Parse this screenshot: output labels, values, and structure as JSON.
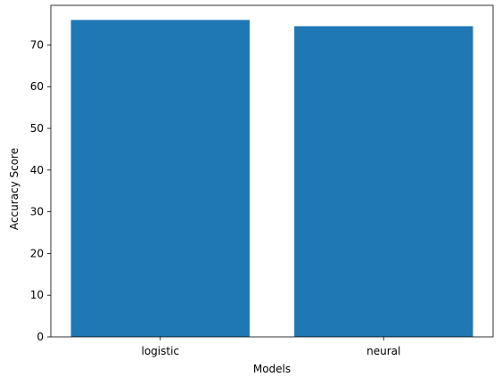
{
  "chart_data": {
    "type": "bar",
    "categories": [
      "logistic",
      "neural"
    ],
    "values": [
      76,
      74.5
    ],
    "xlabel": "Models",
    "ylabel": "Accuracy Score",
    "ylim": [
      0,
      79.5
    ],
    "yticks": [
      0,
      10,
      20,
      30,
      40,
      50,
      60,
      70
    ],
    "grid": false,
    "colors": {
      "bar": "#1f77b4",
      "axis": "#000000",
      "background": "#ffffff"
    }
  }
}
